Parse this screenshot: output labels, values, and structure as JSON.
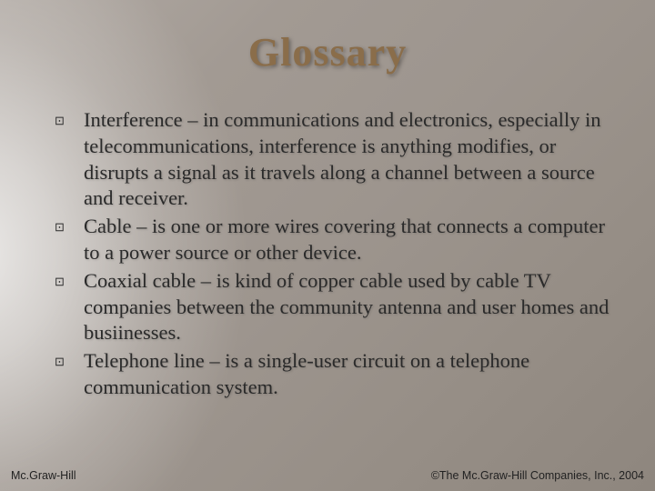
{
  "title": "Glossary",
  "title_style": {
    "font_family": "Palatino Linotype, Book Antiqua, serif",
    "font_size_pt": 33,
    "font_weight": 700,
    "color": "#8a6d4a",
    "shadow": "2px 2px 4px rgba(0,0,0,0.35)"
  },
  "background": {
    "base_color": "#9e968f",
    "light_beam_origin": "left-center",
    "light_color": "#ffffff",
    "gradient_stops": [
      "#b0a9a3",
      "#a29a93",
      "#9d958e",
      "#968e86",
      "#8e867e"
    ]
  },
  "bullets": {
    "glyph": "⊡",
    "color": "#2b2b2b",
    "font_size_pt": 10
  },
  "body_style": {
    "font_family": "Palatino Linotype, Book Antiqua, serif",
    "font_size_pt": 17,
    "line_height": 1.28,
    "color": "#2a2a2a"
  },
  "items": [
    "Interference – in communications and electronics, especially in telecommunications, interference is anything modifies, or disrupts a signal as it travels along a channel between a source  and receiver.",
    "Cable – is one or more wires covering that connects a computer to a power source or other device.",
    "Coaxial cable – is kind of copper cable used by cable TV companies between the community antenna and user homes and busiinesses.",
    "Telephone line – is a single-user circuit on a telephone communication system."
  ],
  "footer": {
    "left": "Mc.Graw-Hill",
    "right": "©The Mc.Graw-Hill Companies, Inc., 2004",
    "font_size_pt": 9.5,
    "color": "#222222"
  }
}
